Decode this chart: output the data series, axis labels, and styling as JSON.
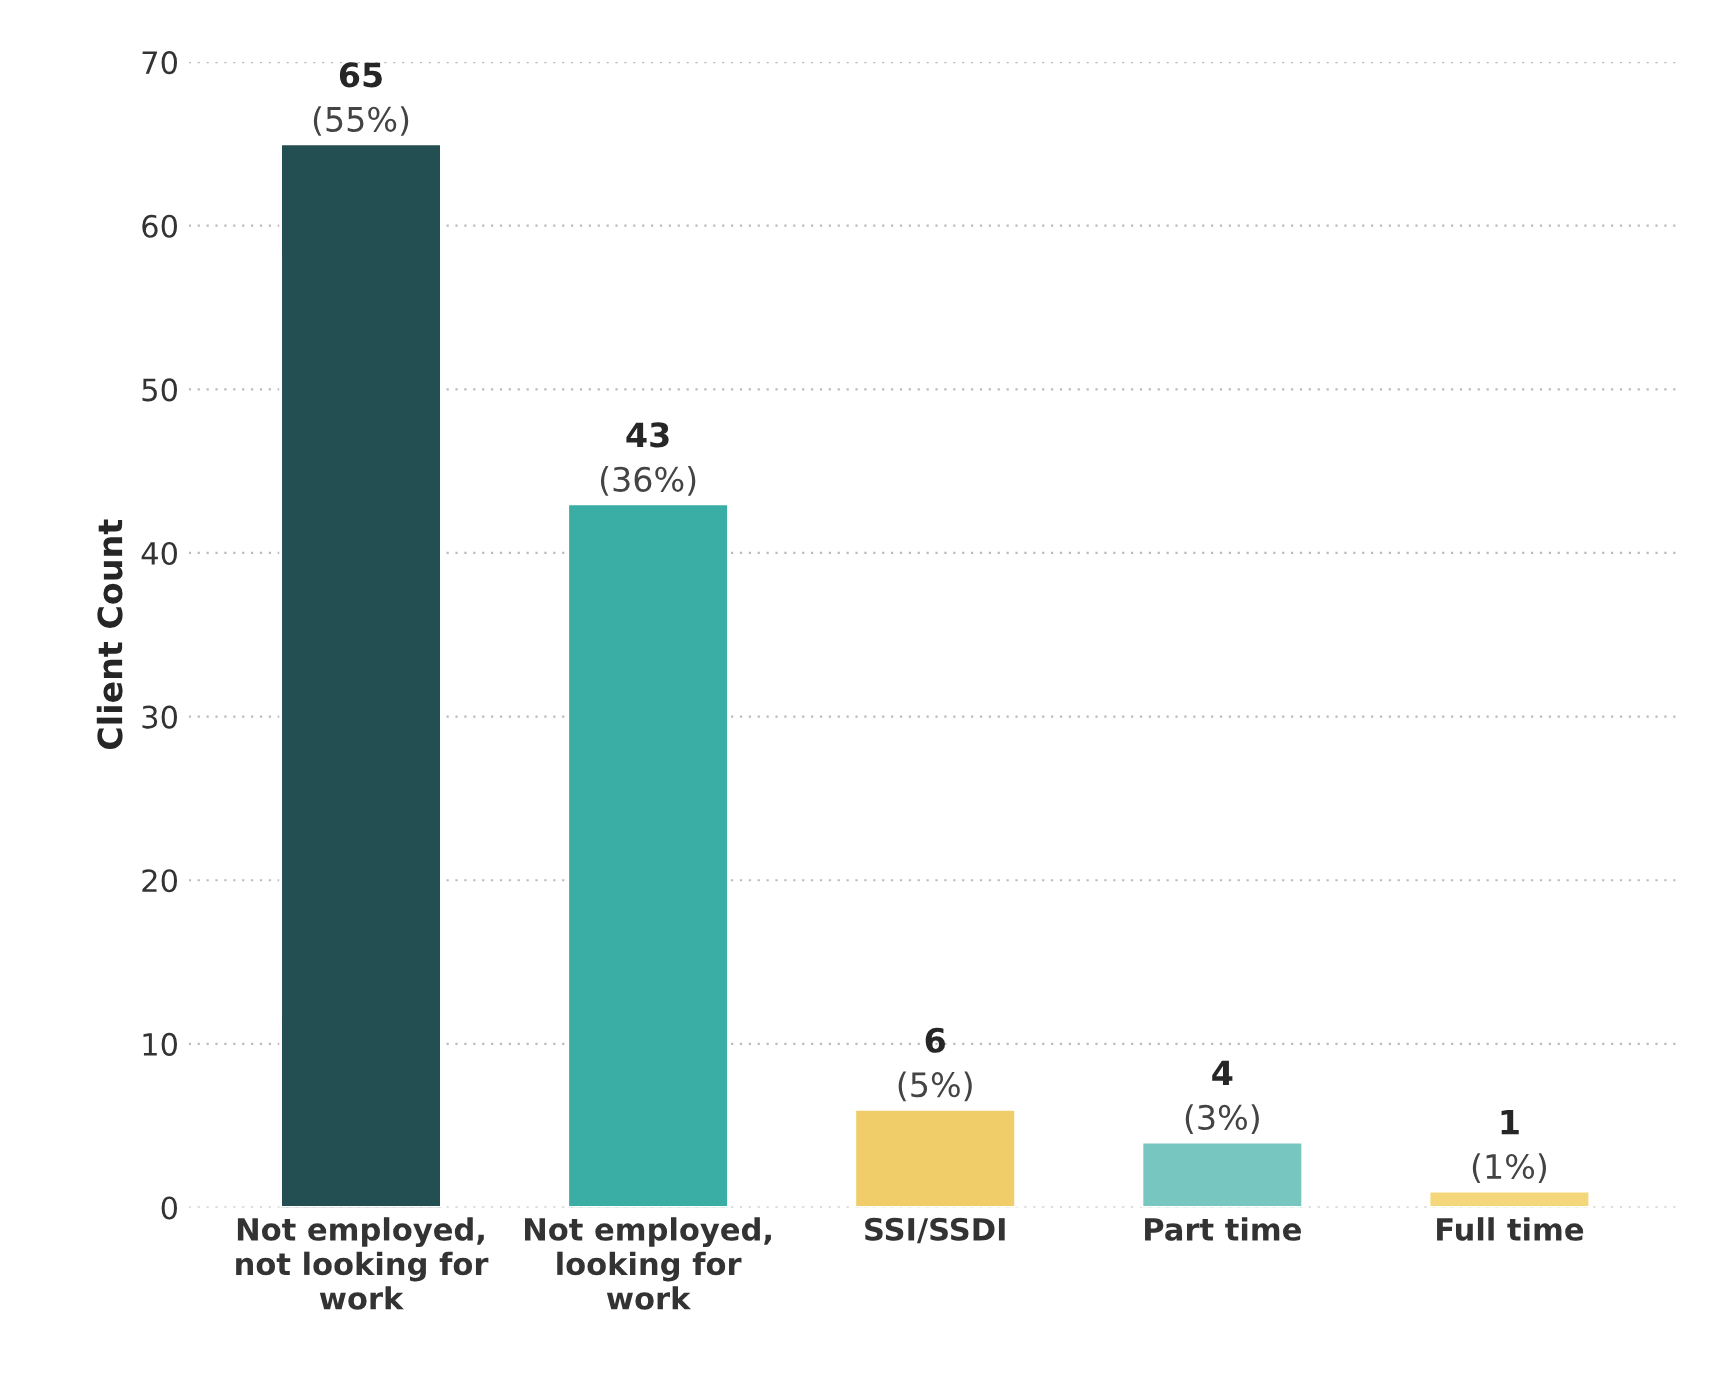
{
  "chart_data": {
    "type": "bar",
    "ylabel": "Client Count",
    "categories": [
      "Not employed,\nnot looking for\nwork",
      "Not employed,\nlooking for\nwork",
      "SSI/SSDI",
      "Part time",
      "Full time"
    ],
    "values": [
      65,
      43,
      6,
      4,
      1
    ],
    "colors": [
      "#234e52",
      "#3aada5",
      "#f0cd69",
      "#77c6bf",
      "#f4d77a"
    ],
    "value_labels": [
      "65\n(55%)",
      "43\n(36%)",
      "6\n(5%)",
      "4\n(3%)",
      "1\n(1%)"
    ],
    "ylim": [
      0,
      70
    ],
    "yticks": [
      0,
      10,
      20,
      30,
      40,
      50,
      60,
      70
    ],
    "grid": "y"
  }
}
